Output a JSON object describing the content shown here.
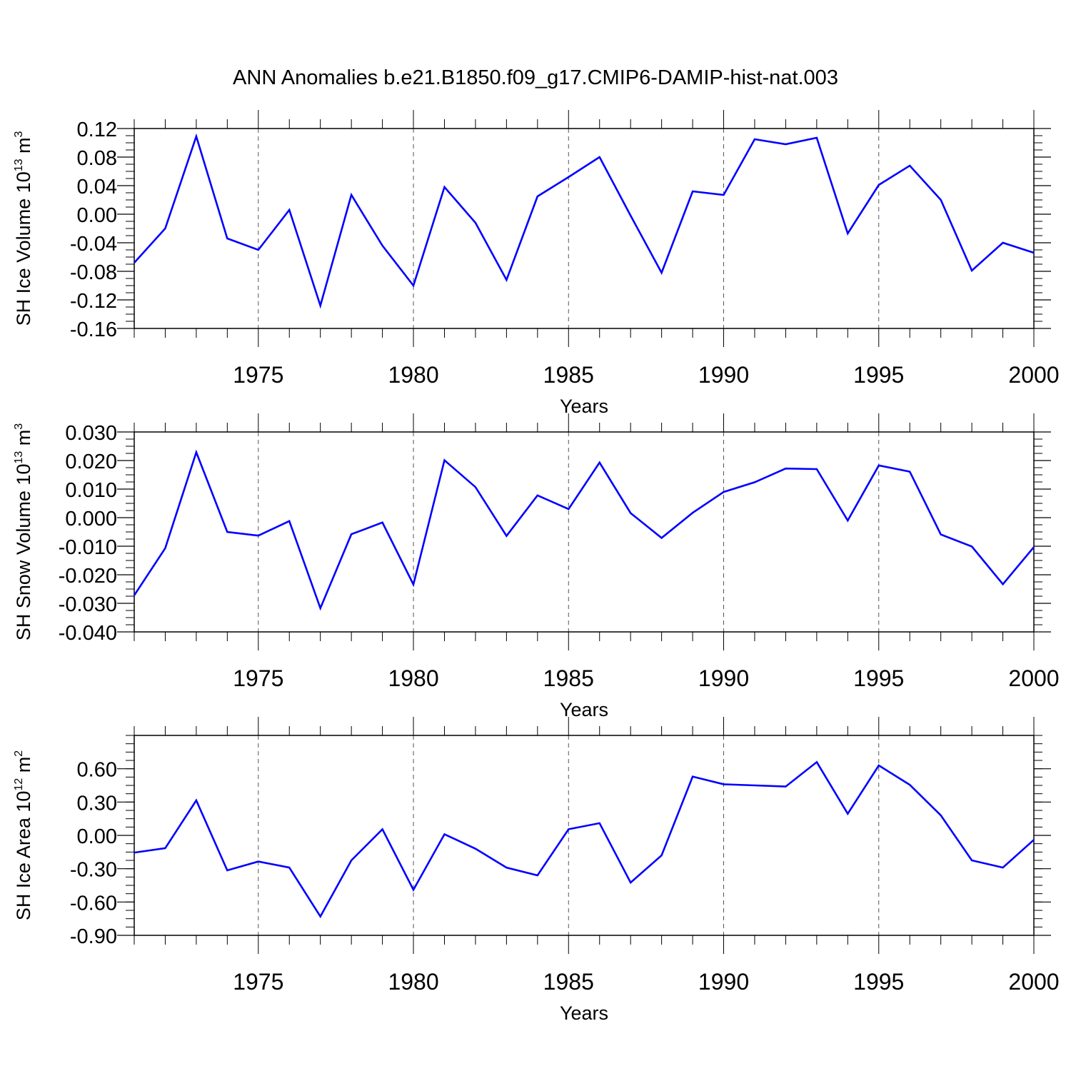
{
  "title": "ANN Anomalies b.e21.B1850.f09_g17.CMIP6-DAMIP-hist-nat.003",
  "chart_data": [
    {
      "type": "line",
      "ylabel": "SH Ice Volume",
      "ylabel_unit_base": "10",
      "ylabel_unit_exp": "13",
      "ylabel_unit": "m",
      "ylabel_unit_pow": "3",
      "xlabel": "Years",
      "xlim": [
        1971,
        2000
      ],
      "ylim": [
        -0.16,
        0.12
      ],
      "xticks": [
        "1975",
        "1980",
        "1985",
        "1990",
        "1995",
        "2000"
      ],
      "yticks": [
        "-0.16",
        "-0.12",
        "-0.08",
        "-0.04",
        "0.00",
        "0.04",
        "0.08",
        "0.12"
      ],
      "grid": "vertical dashed at major x ticks",
      "color": "#0000ff",
      "x": [
        1971,
        1972,
        1973,
        1974,
        1975,
        1976,
        1977,
        1978,
        1979,
        1980,
        1981,
        1982,
        1983,
        1984,
        1985,
        1986,
        1987,
        1988,
        1989,
        1990,
        1991,
        1992,
        1993,
        1994,
        1995,
        1996,
        1997,
        1998,
        1999,
        2000
      ],
      "values": [
        -0.068,
        -0.02,
        0.109,
        -0.034,
        -0.05,
        0.006,
        -0.128,
        0.027,
        -0.044,
        -0.1,
        0.038,
        -0.012,
        -0.092,
        0.025,
        0.052,
        0.08,
        -0.002,
        -0.082,
        0.032,
        0.027,
        0.105,
        0.098,
        0.107,
        -0.027,
        0.041,
        0.068,
        0.02,
        -0.079,
        -0.04,
        -0.054
      ]
    },
    {
      "type": "line",
      "ylabel": "SH Snow Volume",
      "ylabel_unit_base": "10",
      "ylabel_unit_exp": "13",
      "ylabel_unit": "m",
      "ylabel_unit_pow": "3",
      "xlabel": "Years",
      "xlim": [
        1971,
        2000
      ],
      "ylim": [
        -0.04,
        0.03
      ],
      "xticks": [
        "1975",
        "1980",
        "1985",
        "1990",
        "1995",
        "2000"
      ],
      "yticks": [
        "-0.040",
        "-0.030",
        "-0.020",
        "-0.010",
        "0.000",
        "0.010",
        "0.020",
        "0.030"
      ],
      "grid": "vertical dashed at major x ticks",
      "color": "#0000ff",
      "x": [
        1971,
        1972,
        1973,
        1974,
        1975,
        1976,
        1977,
        1978,
        1979,
        1980,
        1981,
        1982,
        1983,
        1984,
        1985,
        1986,
        1987,
        1988,
        1989,
        1990,
        1991,
        1992,
        1993,
        1994,
        1995,
        1996,
        1997,
        1998,
        1999,
        2000
      ],
      "values": [
        -0.0272,
        -0.0107,
        0.0229,
        -0.005,
        -0.0063,
        -0.0012,
        -0.0317,
        -0.0058,
        -0.0017,
        -0.0234,
        0.0201,
        0.0107,
        -0.0064,
        0.0078,
        0.003,
        0.0193,
        0.0016,
        -0.0071,
        0.0017,
        0.009,
        0.0124,
        0.0172,
        0.017,
        -0.001,
        0.0183,
        0.0161,
        -0.0059,
        -0.0101,
        -0.0233,
        -0.0103
      ]
    },
    {
      "type": "line",
      "ylabel": "SH Ice Area",
      "ylabel_unit_base": "10",
      "ylabel_unit_exp": "12",
      "ylabel_unit": "m",
      "ylabel_unit_pow": "2",
      "xlabel": "Years",
      "xlim": [
        1971,
        2000
      ],
      "ylim": [
        -0.9,
        0.9
      ],
      "xticks": [
        "1975",
        "1980",
        "1985",
        "1990",
        "1995",
        "2000"
      ],
      "yticks": [
        "-0.90",
        "-0.60",
        "-0.30",
        "0.00",
        "0.30",
        "0.60"
      ],
      "grid": "vertical dashed at major x ticks",
      "color": "#0000ff",
      "x": [
        1971,
        1972,
        1973,
        1974,
        1975,
        1976,
        1977,
        1978,
        1979,
        1980,
        1981,
        1982,
        1983,
        1984,
        1985,
        1986,
        1987,
        1988,
        1989,
        1990,
        1991,
        1992,
        1993,
        1994,
        1995,
        1996,
        1997,
        1998,
        1999,
        2000
      ],
      "values": [
        -0.155,
        -0.115,
        0.315,
        -0.315,
        -0.235,
        -0.29,
        -0.73,
        -0.225,
        0.055,
        -0.49,
        0.01,
        -0.12,
        -0.29,
        -0.36,
        0.055,
        0.11,
        -0.425,
        -0.18,
        0.53,
        0.46,
        0.45,
        0.44,
        0.66,
        0.195,
        0.63,
        0.455,
        0.18,
        -0.225,
        -0.29,
        -0.04
      ]
    }
  ]
}
